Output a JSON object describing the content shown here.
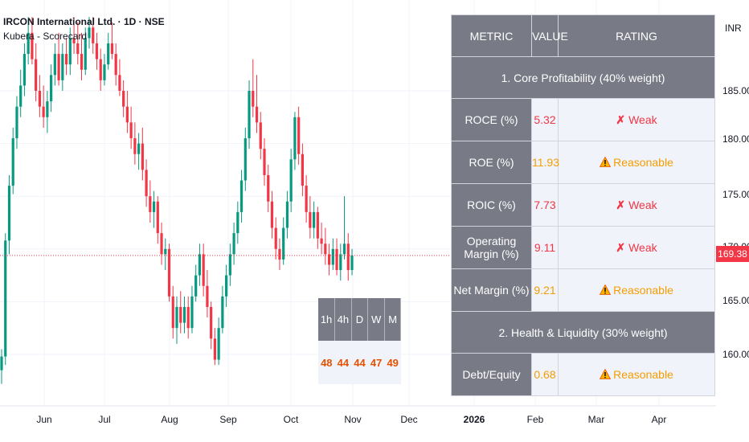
{
  "header": {
    "symbol_title": "IRCON International Ltd. · 1D · NSE",
    "indicator_title": "Kubera - Scorecard"
  },
  "price_axis": {
    "unit": "INR",
    "ticks": [
      "185.00",
      "180.00",
      "175.00",
      "170.00",
      "165.00",
      "160.00"
    ],
    "last_price": "169.38"
  },
  "time_axis": {
    "labels": [
      "Jun",
      "Jul",
      "Aug",
      "Sep",
      "Oct",
      "Nov",
      "Dec",
      "2026",
      "Feb",
      "Mar",
      "Apr"
    ]
  },
  "colors": {
    "up": "#089981",
    "down": "#f23645",
    "weak": "#f23645",
    "reasonable": "#f59d00",
    "header_bg": "#787b86",
    "cell_bg": "#f0f3fa"
  },
  "scorecard": {
    "headers": {
      "metric": "METRIC",
      "value": "VALUE",
      "rating": "RATING"
    },
    "sections": [
      {
        "title": "1. Core Profitability (40% weight)",
        "rows": [
          {
            "metric": "ROCE (%)",
            "value": "5.32",
            "rating": "Weak",
            "icon": "x-mark-icon"
          },
          {
            "metric": "ROE (%)",
            "value": "11.93",
            "rating": "Reasonable",
            "icon": "warning-icon"
          },
          {
            "metric": "ROIC (%)",
            "value": "7.73",
            "rating": "Weak",
            "icon": "x-mark-icon"
          },
          {
            "metric": "Operating Margin (%)",
            "value": "9.11",
            "rating": "Weak",
            "icon": "x-mark-icon"
          },
          {
            "metric": "Net Margin (%)",
            "value": "9.21",
            "rating": "Reasonable",
            "icon": "warning-icon"
          }
        ]
      },
      {
        "title": "2. Health & Liquidity (30% weight)",
        "rows": [
          {
            "metric": "Debt/Equity",
            "value": "0.68",
            "rating": "Reasonable",
            "icon": "warning-icon"
          }
        ]
      }
    ]
  },
  "mtf_table": {
    "headers": [
      "1h",
      "4h",
      "D",
      "W",
      "M"
    ],
    "values": [
      "48",
      "44",
      "44",
      "47",
      "49"
    ]
  },
  "chart_data": {
    "type": "candlestick",
    "title": "IRCON International Ltd. · 1D · NSE",
    "ylim": [
      157,
      192
    ],
    "last_price": 169.38,
    "candles": [
      {
        "o": 158.5,
        "h": 160.5,
        "l": 157.2,
        "c": 159.8
      },
      {
        "o": 159.8,
        "h": 171.5,
        "l": 159.0,
        "c": 170.8
      },
      {
        "o": 170.8,
        "h": 177.0,
        "l": 169.5,
        "c": 176.0
      },
      {
        "o": 176.0,
        "h": 181.5,
        "l": 175.2,
        "c": 180.5
      },
      {
        "o": 180.5,
        "h": 184.5,
        "l": 179.5,
        "c": 183.5
      },
      {
        "o": 183.5,
        "h": 187.0,
        "l": 182.5,
        "c": 185.5
      },
      {
        "o": 185.5,
        "h": 189.5,
        "l": 184.5,
        "c": 188.5
      },
      {
        "o": 188.5,
        "h": 192.0,
        "l": 187.5,
        "c": 190.5
      },
      {
        "o": 190.5,
        "h": 192.0,
        "l": 187.5,
        "c": 188.0
      },
      {
        "o": 188.0,
        "h": 189.5,
        "l": 184.0,
        "c": 185.0
      },
      {
        "o": 185.0,
        "h": 186.5,
        "l": 182.5,
        "c": 183.5
      },
      {
        "o": 183.5,
        "h": 185.5,
        "l": 181.5,
        "c": 182.5
      },
      {
        "o": 182.5,
        "h": 185.0,
        "l": 181.0,
        "c": 184.0
      },
      {
        "o": 184.0,
        "h": 187.5,
        "l": 183.0,
        "c": 186.5
      },
      {
        "o": 186.5,
        "h": 189.5,
        "l": 185.5,
        "c": 188.5
      },
      {
        "o": 188.5,
        "h": 190.5,
        "l": 185.5,
        "c": 186.0
      },
      {
        "o": 186.0,
        "h": 189.5,
        "l": 185.0,
        "c": 188.5
      },
      {
        "o": 188.5,
        "h": 190.0,
        "l": 186.5,
        "c": 187.5
      },
      {
        "o": 187.5,
        "h": 191.0,
        "l": 186.5,
        "c": 190.0
      },
      {
        "o": 190.0,
        "h": 192.0,
        "l": 188.5,
        "c": 189.5
      },
      {
        "o": 189.5,
        "h": 191.5,
        "l": 187.5,
        "c": 188.5
      },
      {
        "o": 188.5,
        "h": 190.5,
        "l": 186.0,
        "c": 187.0
      },
      {
        "o": 187.0,
        "h": 191.0,
        "l": 186.5,
        "c": 190.0
      },
      {
        "o": 190.0,
        "h": 192.0,
        "l": 189.0,
        "c": 191.0
      },
      {
        "o": 191.0,
        "h": 192.0,
        "l": 188.5,
        "c": 189.5
      },
      {
        "o": 189.5,
        "h": 190.5,
        "l": 187.0,
        "c": 188.0
      },
      {
        "o": 188.0,
        "h": 189.0,
        "l": 185.0,
        "c": 186.0
      },
      {
        "o": 186.0,
        "h": 188.5,
        "l": 185.5,
        "c": 187.5
      },
      {
        "o": 187.5,
        "h": 190.5,
        "l": 187.0,
        "c": 189.5
      },
      {
        "o": 189.5,
        "h": 191.5,
        "l": 188.0,
        "c": 188.5
      },
      {
        "o": 188.5,
        "h": 189.5,
        "l": 185.5,
        "c": 186.5
      },
      {
        "o": 186.5,
        "h": 188.0,
        "l": 184.5,
        "c": 185.0
      },
      {
        "o": 185.0,
        "h": 186.0,
        "l": 182.5,
        "c": 183.5
      },
      {
        "o": 183.5,
        "h": 185.0,
        "l": 181.0,
        "c": 182.0
      },
      {
        "o": 182.0,
        "h": 183.5,
        "l": 179.5,
        "c": 180.5
      },
      {
        "o": 180.5,
        "h": 182.0,
        "l": 178.0,
        "c": 179.0
      },
      {
        "o": 179.0,
        "h": 181.0,
        "l": 177.5,
        "c": 180.0
      },
      {
        "o": 180.0,
        "h": 181.5,
        "l": 176.5,
        "c": 177.5
      },
      {
        "o": 177.5,
        "h": 178.5,
        "l": 174.0,
        "c": 175.0
      },
      {
        "o": 175.0,
        "h": 176.5,
        "l": 172.5,
        "c": 173.5
      },
      {
        "o": 173.5,
        "h": 175.5,
        "l": 172.0,
        "c": 174.5
      },
      {
        "o": 174.5,
        "h": 175.0,
        "l": 170.5,
        "c": 171.5
      },
      {
        "o": 171.5,
        "h": 172.5,
        "l": 168.5,
        "c": 169.5
      },
      {
        "o": 169.5,
        "h": 171.0,
        "l": 168.0,
        "c": 170.0
      },
      {
        "o": 170.0,
        "h": 170.5,
        "l": 165.0,
        "c": 165.5
      },
      {
        "o": 165.5,
        "h": 166.5,
        "l": 161.5,
        "c": 162.5
      },
      {
        "o": 162.5,
        "h": 165.5,
        "l": 161.0,
        "c": 164.5
      },
      {
        "o": 164.5,
        "h": 166.0,
        "l": 162.0,
        "c": 163.0
      },
      {
        "o": 163.0,
        "h": 165.5,
        "l": 162.0,
        "c": 164.5
      },
      {
        "o": 164.5,
        "h": 165.5,
        "l": 161.5,
        "c": 162.5
      },
      {
        "o": 162.5,
        "h": 166.5,
        "l": 162.0,
        "c": 165.5
      },
      {
        "o": 165.5,
        "h": 168.5,
        "l": 165.0,
        "c": 167.5
      },
      {
        "o": 167.5,
        "h": 170.5,
        "l": 166.5,
        "c": 169.5
      },
      {
        "o": 169.5,
        "h": 170.5,
        "l": 165.5,
        "c": 166.5
      },
      {
        "o": 166.5,
        "h": 168.0,
        "l": 163.5,
        "c": 164.5
      },
      {
        "o": 164.5,
        "h": 165.0,
        "l": 160.5,
        "c": 161.5
      },
      {
        "o": 161.5,
        "h": 162.5,
        "l": 159.0,
        "c": 159.5
      },
      {
        "o": 159.5,
        "h": 163.5,
        "l": 159.0,
        "c": 162.5
      },
      {
        "o": 162.5,
        "h": 166.5,
        "l": 162.0,
        "c": 165.5
      },
      {
        "o": 165.5,
        "h": 168.5,
        "l": 164.5,
        "c": 167.5
      },
      {
        "o": 167.5,
        "h": 170.5,
        "l": 166.5,
        "c": 169.5
      },
      {
        "o": 169.5,
        "h": 172.5,
        "l": 168.5,
        "c": 171.5
      },
      {
        "o": 171.5,
        "h": 174.5,
        "l": 170.5,
        "c": 173.5
      },
      {
        "o": 173.5,
        "h": 177.5,
        "l": 172.5,
        "c": 176.5
      },
      {
        "o": 176.5,
        "h": 181.5,
        "l": 175.5,
        "c": 180.5
      },
      {
        "o": 180.5,
        "h": 186.0,
        "l": 179.5,
        "c": 185.0
      },
      {
        "o": 185.0,
        "h": 188.0,
        "l": 182.5,
        "c": 183.5
      },
      {
        "o": 183.5,
        "h": 186.5,
        "l": 181.0,
        "c": 182.0
      },
      {
        "o": 182.0,
        "h": 183.0,
        "l": 178.5,
        "c": 179.5
      },
      {
        "o": 179.5,
        "h": 180.5,
        "l": 176.0,
        "c": 177.0
      },
      {
        "o": 177.0,
        "h": 178.0,
        "l": 173.5,
        "c": 174.5
      },
      {
        "o": 174.5,
        "h": 175.5,
        "l": 171.0,
        "c": 172.0
      },
      {
        "o": 172.0,
        "h": 173.0,
        "l": 169.0,
        "c": 170.0
      },
      {
        "o": 170.0,
        "h": 171.0,
        "l": 168.0,
        "c": 169.0
      },
      {
        "o": 169.0,
        "h": 173.0,
        "l": 168.5,
        "c": 172.0
      },
      {
        "o": 172.0,
        "h": 175.5,
        "l": 171.0,
        "c": 174.5
      },
      {
        "o": 174.5,
        "h": 179.5,
        "l": 173.5,
        "c": 178.5
      },
      {
        "o": 178.5,
        "h": 183.0,
        "l": 177.5,
        "c": 182.5
      },
      {
        "o": 182.5,
        "h": 183.5,
        "l": 178.0,
        "c": 179.0
      },
      {
        "o": 179.0,
        "h": 180.0,
        "l": 175.0,
        "c": 176.0
      },
      {
        "o": 176.0,
        "h": 177.0,
        "l": 172.5,
        "c": 173.5
      },
      {
        "o": 173.5,
        "h": 175.0,
        "l": 171.0,
        "c": 172.0
      },
      {
        "o": 172.0,
        "h": 174.5,
        "l": 171.0,
        "c": 173.5
      },
      {
        "o": 173.5,
        "h": 174.0,
        "l": 170.0,
        "c": 171.0
      },
      {
        "o": 171.0,
        "h": 172.5,
        "l": 169.5,
        "c": 170.5
      },
      {
        "o": 170.5,
        "h": 172.0,
        "l": 168.5,
        "c": 169.5
      },
      {
        "o": 169.5,
        "h": 170.5,
        "l": 167.5,
        "c": 168.5
      },
      {
        "o": 168.5,
        "h": 171.0,
        "l": 168.0,
        "c": 170.0
      },
      {
        "o": 170.0,
        "h": 171.0,
        "l": 167.5,
        "c": 168.0
      },
      {
        "o": 168.0,
        "h": 170.5,
        "l": 167.0,
        "c": 169.5
      },
      {
        "o": 169.5,
        "h": 175.0,
        "l": 169.0,
        "c": 170.5
      },
      {
        "o": 170.5,
        "h": 171.5,
        "l": 167.0,
        "c": 168.0
      },
      {
        "o": 168.0,
        "h": 170.0,
        "l": 167.5,
        "c": 169.38
      }
    ]
  }
}
